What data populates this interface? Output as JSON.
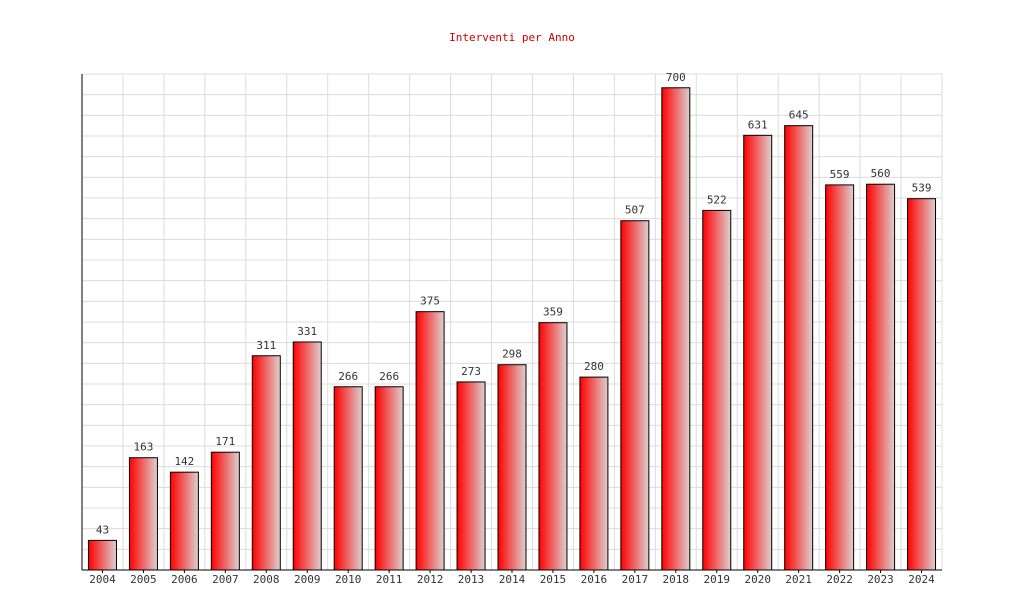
{
  "chart_data": {
    "type": "bar",
    "title": "Interventi per Anno",
    "categories": [
      "2004",
      "2005",
      "2006",
      "2007",
      "2008",
      "2009",
      "2010",
      "2011",
      "2012",
      "2013",
      "2014",
      "2015",
      "2016",
      "2017",
      "2018",
      "2019",
      "2020",
      "2021",
      "2022",
      "2023",
      "2024"
    ],
    "values": [
      43,
      163,
      142,
      171,
      311,
      331,
      266,
      266,
      375,
      273,
      298,
      359,
      280,
      507,
      700,
      522,
      631,
      645,
      559,
      560,
      539
    ],
    "color": "#ff0000",
    "ylim": [
      0,
      720
    ],
    "yticks": [
      0,
      30,
      60,
      90,
      120,
      150,
      180,
      210,
      240,
      270,
      300,
      330,
      360,
      390,
      420,
      450,
      480,
      510,
      540,
      570,
      600,
      630,
      660,
      690,
      720
    ],
    "grid": true
  }
}
